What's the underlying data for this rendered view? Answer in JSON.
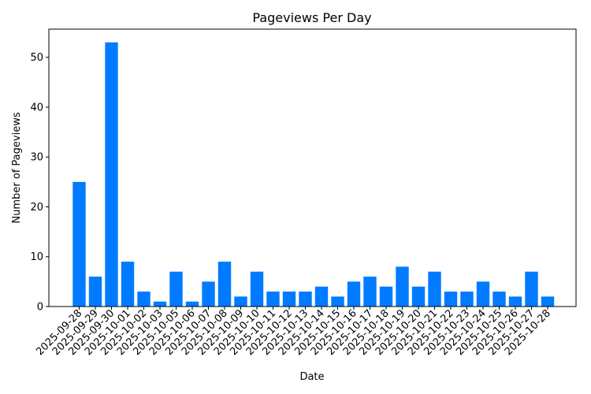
{
  "chart_data": {
    "type": "bar",
    "title": "Pageviews Per Day",
    "xlabel": "Date",
    "ylabel": "Number of Pageviews",
    "ylim": [
      0,
      55.65
    ],
    "yticks": [
      0,
      10,
      20,
      30,
      40,
      50
    ],
    "grid": false,
    "bar_color": "#007bff",
    "categories": [
      "2025-09-28",
      "2025-09-29",
      "2025-09-30",
      "2025-10-01",
      "2025-10-02",
      "2025-10-03",
      "2025-10-05",
      "2025-10-06",
      "2025-10-07",
      "2025-10-08",
      "2025-10-09",
      "2025-10-10",
      "2025-10-11",
      "2025-10-12",
      "2025-10-13",
      "2025-10-14",
      "2025-10-15",
      "2025-10-16",
      "2025-10-17",
      "2025-10-18",
      "2025-10-19",
      "2025-10-20",
      "2025-10-21",
      "2025-10-22",
      "2025-10-23",
      "2025-10-24",
      "2025-10-25",
      "2025-10-26",
      "2025-10-27",
      "2025-10-28"
    ],
    "values": [
      25,
      6,
      53,
      9,
      3,
      1,
      7,
      1,
      5,
      9,
      2,
      7,
      3,
      3,
      3,
      4,
      2,
      5,
      6,
      4,
      8,
      4,
      7,
      3,
      3,
      5,
      3,
      2,
      7,
      2
    ]
  }
}
